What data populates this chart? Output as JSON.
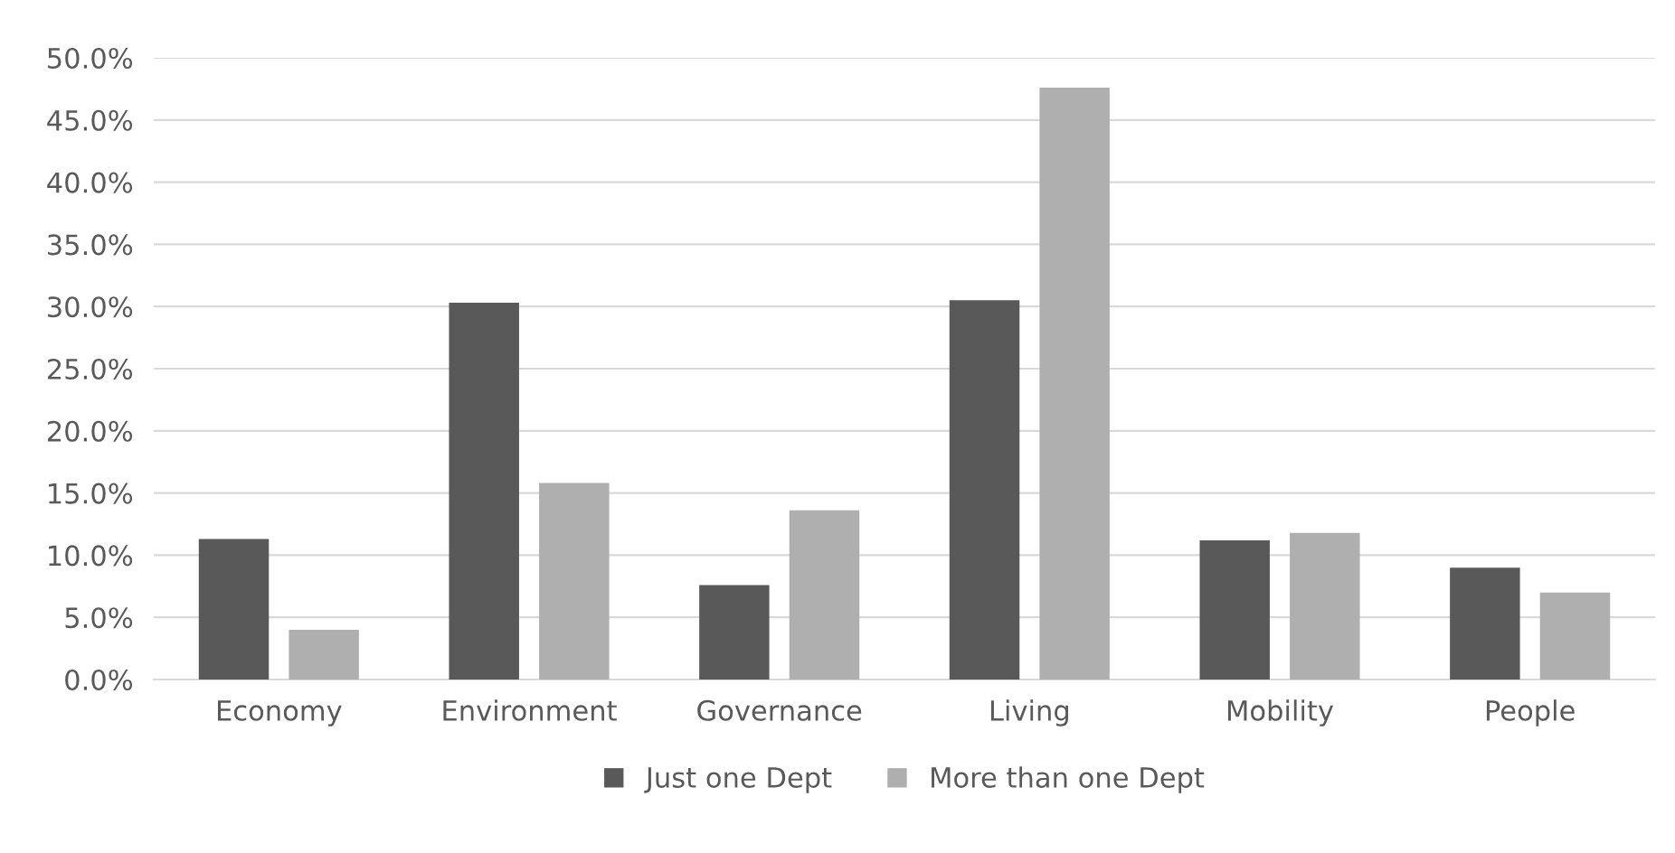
{
  "chart_data": {
    "type": "bar",
    "categories": [
      "Economy",
      "Environment",
      "Governance",
      "Living",
      "Mobility",
      "People"
    ],
    "series": [
      {
        "name": "Just one Dept",
        "color": "#595959",
        "values": [
          11.3,
          30.3,
          7.6,
          30.5,
          11.2,
          9.0
        ]
      },
      {
        "name": "More than one Dept",
        "color": "#afafaf",
        "values": [
          4.0,
          15.8,
          13.6,
          47.6,
          11.8,
          7.0
        ]
      }
    ],
    "ylim": [
      0,
      50
    ],
    "yticks": [
      {
        "value": 0,
        "label": "0.0%"
      },
      {
        "value": 5,
        "label": "5.0%"
      },
      {
        "value": 10,
        "label": "10.0%"
      },
      {
        "value": 15,
        "label": "15.0%"
      },
      {
        "value": 20,
        "label": "20.0%"
      },
      {
        "value": 25,
        "label": "25.0%"
      },
      {
        "value": 30,
        "label": "30.0%"
      },
      {
        "value": 35,
        "label": "35.0%"
      },
      {
        "value": 40,
        "label": "40.0%"
      },
      {
        "value": 45,
        "label": "45.0%"
      },
      {
        "value": 50,
        "label": "50.0%"
      }
    ],
    "grid": "y",
    "legend": "bottom"
  }
}
